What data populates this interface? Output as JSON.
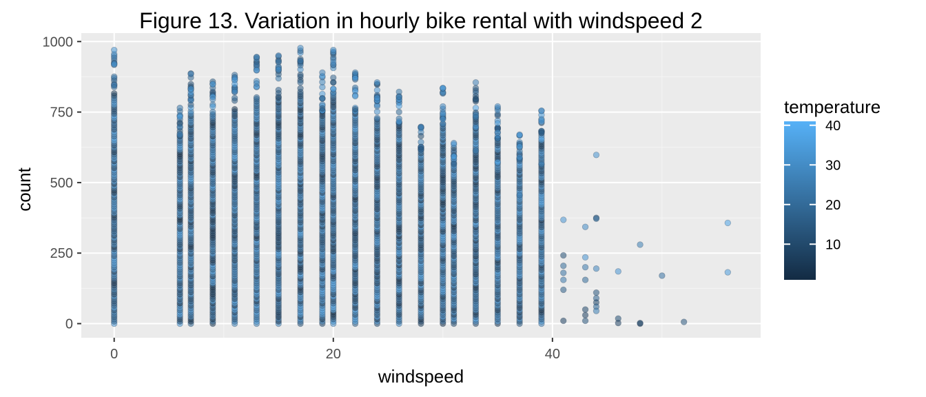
{
  "chart_data": {
    "type": "scatter",
    "title": "Figure 13. Variation in hourly bike rental with windspeed 2",
    "xlabel": "windspeed",
    "ylabel": "count",
    "xlim": [
      -3,
      59
    ],
    "ylim": [
      -50,
      1030
    ],
    "x_ticks": [
      0,
      20,
      40
    ],
    "y_ticks": [
      0,
      250,
      500,
      750,
      1000
    ],
    "grid": true,
    "colors": {
      "panel_background": "#ebebeb",
      "grid_major": "#ffffff",
      "grid_minor": "#f5f5f5",
      "point_low": "#132b43",
      "point_high": "#56b1f7"
    },
    "legend": {
      "title": "temperature",
      "ticks": [
        10,
        20,
        30,
        40
      ],
      "range": [
        1,
        41
      ],
      "placement": "right"
    },
    "windspeed_columns": [
      {
        "x": 0,
        "ymax": 970
      },
      {
        "x": 6,
        "ymax": 780
      },
      {
        "x": 7,
        "ymax": 890
      },
      {
        "x": 9,
        "ymax": 870
      },
      {
        "x": 11,
        "ymax": 900
      },
      {
        "x": 13,
        "ymax": 945
      },
      {
        "x": 15,
        "ymax": 950
      },
      {
        "x": 17,
        "ymax": 977
      },
      {
        "x": 19,
        "ymax": 890
      },
      {
        "x": 20,
        "ymax": 970
      },
      {
        "x": 22,
        "ymax": 890
      },
      {
        "x": 24,
        "ymax": 855
      },
      {
        "x": 26,
        "ymax": 835
      },
      {
        "x": 28,
        "ymax": 705
      },
      {
        "x": 30,
        "ymax": 835
      },
      {
        "x": 31,
        "ymax": 640
      },
      {
        "x": 33,
        "ymax": 855
      },
      {
        "x": 35,
        "ymax": 770
      },
      {
        "x": 37,
        "ymax": 670
      },
      {
        "x": 39,
        "ymax": 755
      }
    ],
    "points": [
      {
        "x": 0,
        "y": 970,
        "t": 32
      },
      {
        "x": 0,
        "y": 920,
        "t": 34
      },
      {
        "x": 7,
        "y": 887,
        "t": 20
      },
      {
        "x": 7,
        "y": 885,
        "t": 24
      },
      {
        "x": 13,
        "y": 945,
        "t": 26
      },
      {
        "x": 15,
        "y": 950,
        "t": 28
      },
      {
        "x": 17,
        "y": 977,
        "t": 30
      },
      {
        "x": 19,
        "y": 890,
        "t": 27
      },
      {
        "x": 20,
        "y": 970,
        "t": 29
      },
      {
        "x": 20,
        "y": 832,
        "t": 37
      },
      {
        "x": 22,
        "y": 890,
        "t": 26
      },
      {
        "x": 22,
        "y": 870,
        "t": 33
      },
      {
        "x": 24,
        "y": 855,
        "t": 31
      },
      {
        "x": 24,
        "y": 800,
        "t": 33
      },
      {
        "x": 30,
        "y": 835,
        "t": 34
      },
      {
        "x": 30,
        "y": 770,
        "t": 28
      },
      {
        "x": 31,
        "y": 640,
        "t": 30
      },
      {
        "x": 33,
        "y": 855,
        "t": 27
      },
      {
        "x": 33,
        "y": 695,
        "t": 30
      },
      {
        "x": 33,
        "y": 613,
        "t": 26
      },
      {
        "x": 35,
        "y": 770,
        "t": 30
      },
      {
        "x": 35,
        "y": 710,
        "t": 34
      },
      {
        "x": 35,
        "y": 665,
        "t": 28
      },
      {
        "x": 35,
        "y": 572,
        "t": 37
      },
      {
        "x": 37,
        "y": 670,
        "t": 33
      },
      {
        "x": 37,
        "y": 590,
        "t": 31
      },
      {
        "x": 37,
        "y": 455,
        "t": 28
      },
      {
        "x": 39,
        "y": 755,
        "t": 35
      },
      {
        "x": 39,
        "y": 565,
        "t": 26
      },
      {
        "x": 41,
        "y": 368,
        "t": 33
      },
      {
        "x": 41,
        "y": 242,
        "t": 12
      },
      {
        "x": 41,
        "y": 205,
        "t": 20
      },
      {
        "x": 41,
        "y": 180,
        "t": 22
      },
      {
        "x": 41,
        "y": 155,
        "t": 24
      },
      {
        "x": 41,
        "y": 120,
        "t": 16
      },
      {
        "x": 41,
        "y": 10,
        "t": 8
      },
      {
        "x": 43,
        "y": 343,
        "t": 30
      },
      {
        "x": 43,
        "y": 235,
        "t": 33
      },
      {
        "x": 43,
        "y": 200,
        "t": 24
      },
      {
        "x": 43,
        "y": 155,
        "t": 20
      },
      {
        "x": 43,
        "y": 50,
        "t": 10
      },
      {
        "x": 43,
        "y": 30,
        "t": 8
      },
      {
        "x": 43,
        "y": 10,
        "t": 14
      },
      {
        "x": 44,
        "y": 598,
        "t": 32
      },
      {
        "x": 44,
        "y": 375,
        "t": 12
      },
      {
        "x": 44,
        "y": 372,
        "t": 20
      },
      {
        "x": 44,
        "y": 195,
        "t": 28
      },
      {
        "x": 44,
        "y": 110,
        "t": 14
      },
      {
        "x": 44,
        "y": 90,
        "t": 18
      },
      {
        "x": 44,
        "y": 75,
        "t": 10
      },
      {
        "x": 44,
        "y": 60,
        "t": 20
      },
      {
        "x": 44,
        "y": 45,
        "t": 26
      },
      {
        "x": 46,
        "y": 185,
        "t": 33
      },
      {
        "x": 46,
        "y": 18,
        "t": 12
      },
      {
        "x": 46,
        "y": 2,
        "t": 8
      },
      {
        "x": 48,
        "y": 280,
        "t": 26
      },
      {
        "x": 48,
        "y": 0,
        "t": 5
      },
      {
        "x": 48,
        "y": 2,
        "t": 10
      },
      {
        "x": 50,
        "y": 170,
        "t": 22
      },
      {
        "x": 52,
        "y": 6,
        "t": 14
      },
      {
        "x": 56,
        "y": 357,
        "t": 37
      },
      {
        "x": 56,
        "y": 182,
        "t": 35
      }
    ]
  }
}
